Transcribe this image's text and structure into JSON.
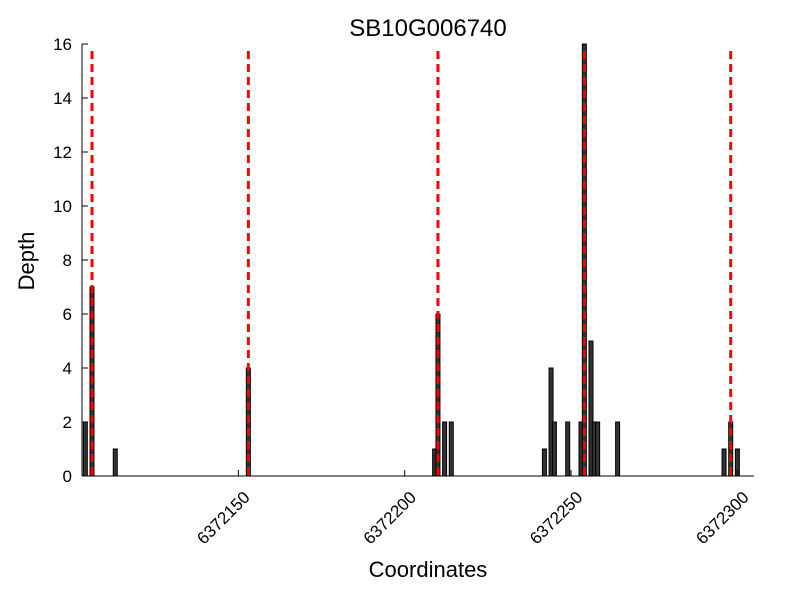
{
  "chart_data": {
    "type": "bar",
    "title": "SB10G006740",
    "xlabel": "Coordinates",
    "ylabel": "Depth",
    "xlim": [
      6372103,
      6372305
    ],
    "ylim": [
      0,
      16
    ],
    "y_ticks": [
      0,
      2,
      4,
      6,
      8,
      10,
      12,
      14,
      16
    ],
    "x_ticks": [
      6372150,
      6372200,
      6372250,
      6372300
    ],
    "grid": false,
    "bar_color": "#333333",
    "marker_color": "#ff0000",
    "bars": [
      {
        "x": 6372104,
        "y": 2
      },
      {
        "x": 6372106,
        "y": 7
      },
      {
        "x": 6372113,
        "y": 1
      },
      {
        "x": 6372153,
        "y": 4
      },
      {
        "x": 6372209,
        "y": 1
      },
      {
        "x": 6372210,
        "y": 6
      },
      {
        "x": 6372212,
        "y": 2
      },
      {
        "x": 6372214,
        "y": 2
      },
      {
        "x": 6372242,
        "y": 1
      },
      {
        "x": 6372244,
        "y": 4
      },
      {
        "x": 6372245,
        "y": 2
      },
      {
        "x": 6372249,
        "y": 2
      },
      {
        "x": 6372253,
        "y": 2
      },
      {
        "x": 6372254,
        "y": 16
      },
      {
        "x": 6372256,
        "y": 5
      },
      {
        "x": 6372257,
        "y": 2
      },
      {
        "x": 6372258,
        "y": 2
      },
      {
        "x": 6372264,
        "y": 2
      },
      {
        "x": 6372296,
        "y": 1
      },
      {
        "x": 6372298,
        "y": 2
      },
      {
        "x": 6372300,
        "y": 1
      }
    ],
    "markers": [
      6372106,
      6372153,
      6372210,
      6372254,
      6372298
    ]
  }
}
